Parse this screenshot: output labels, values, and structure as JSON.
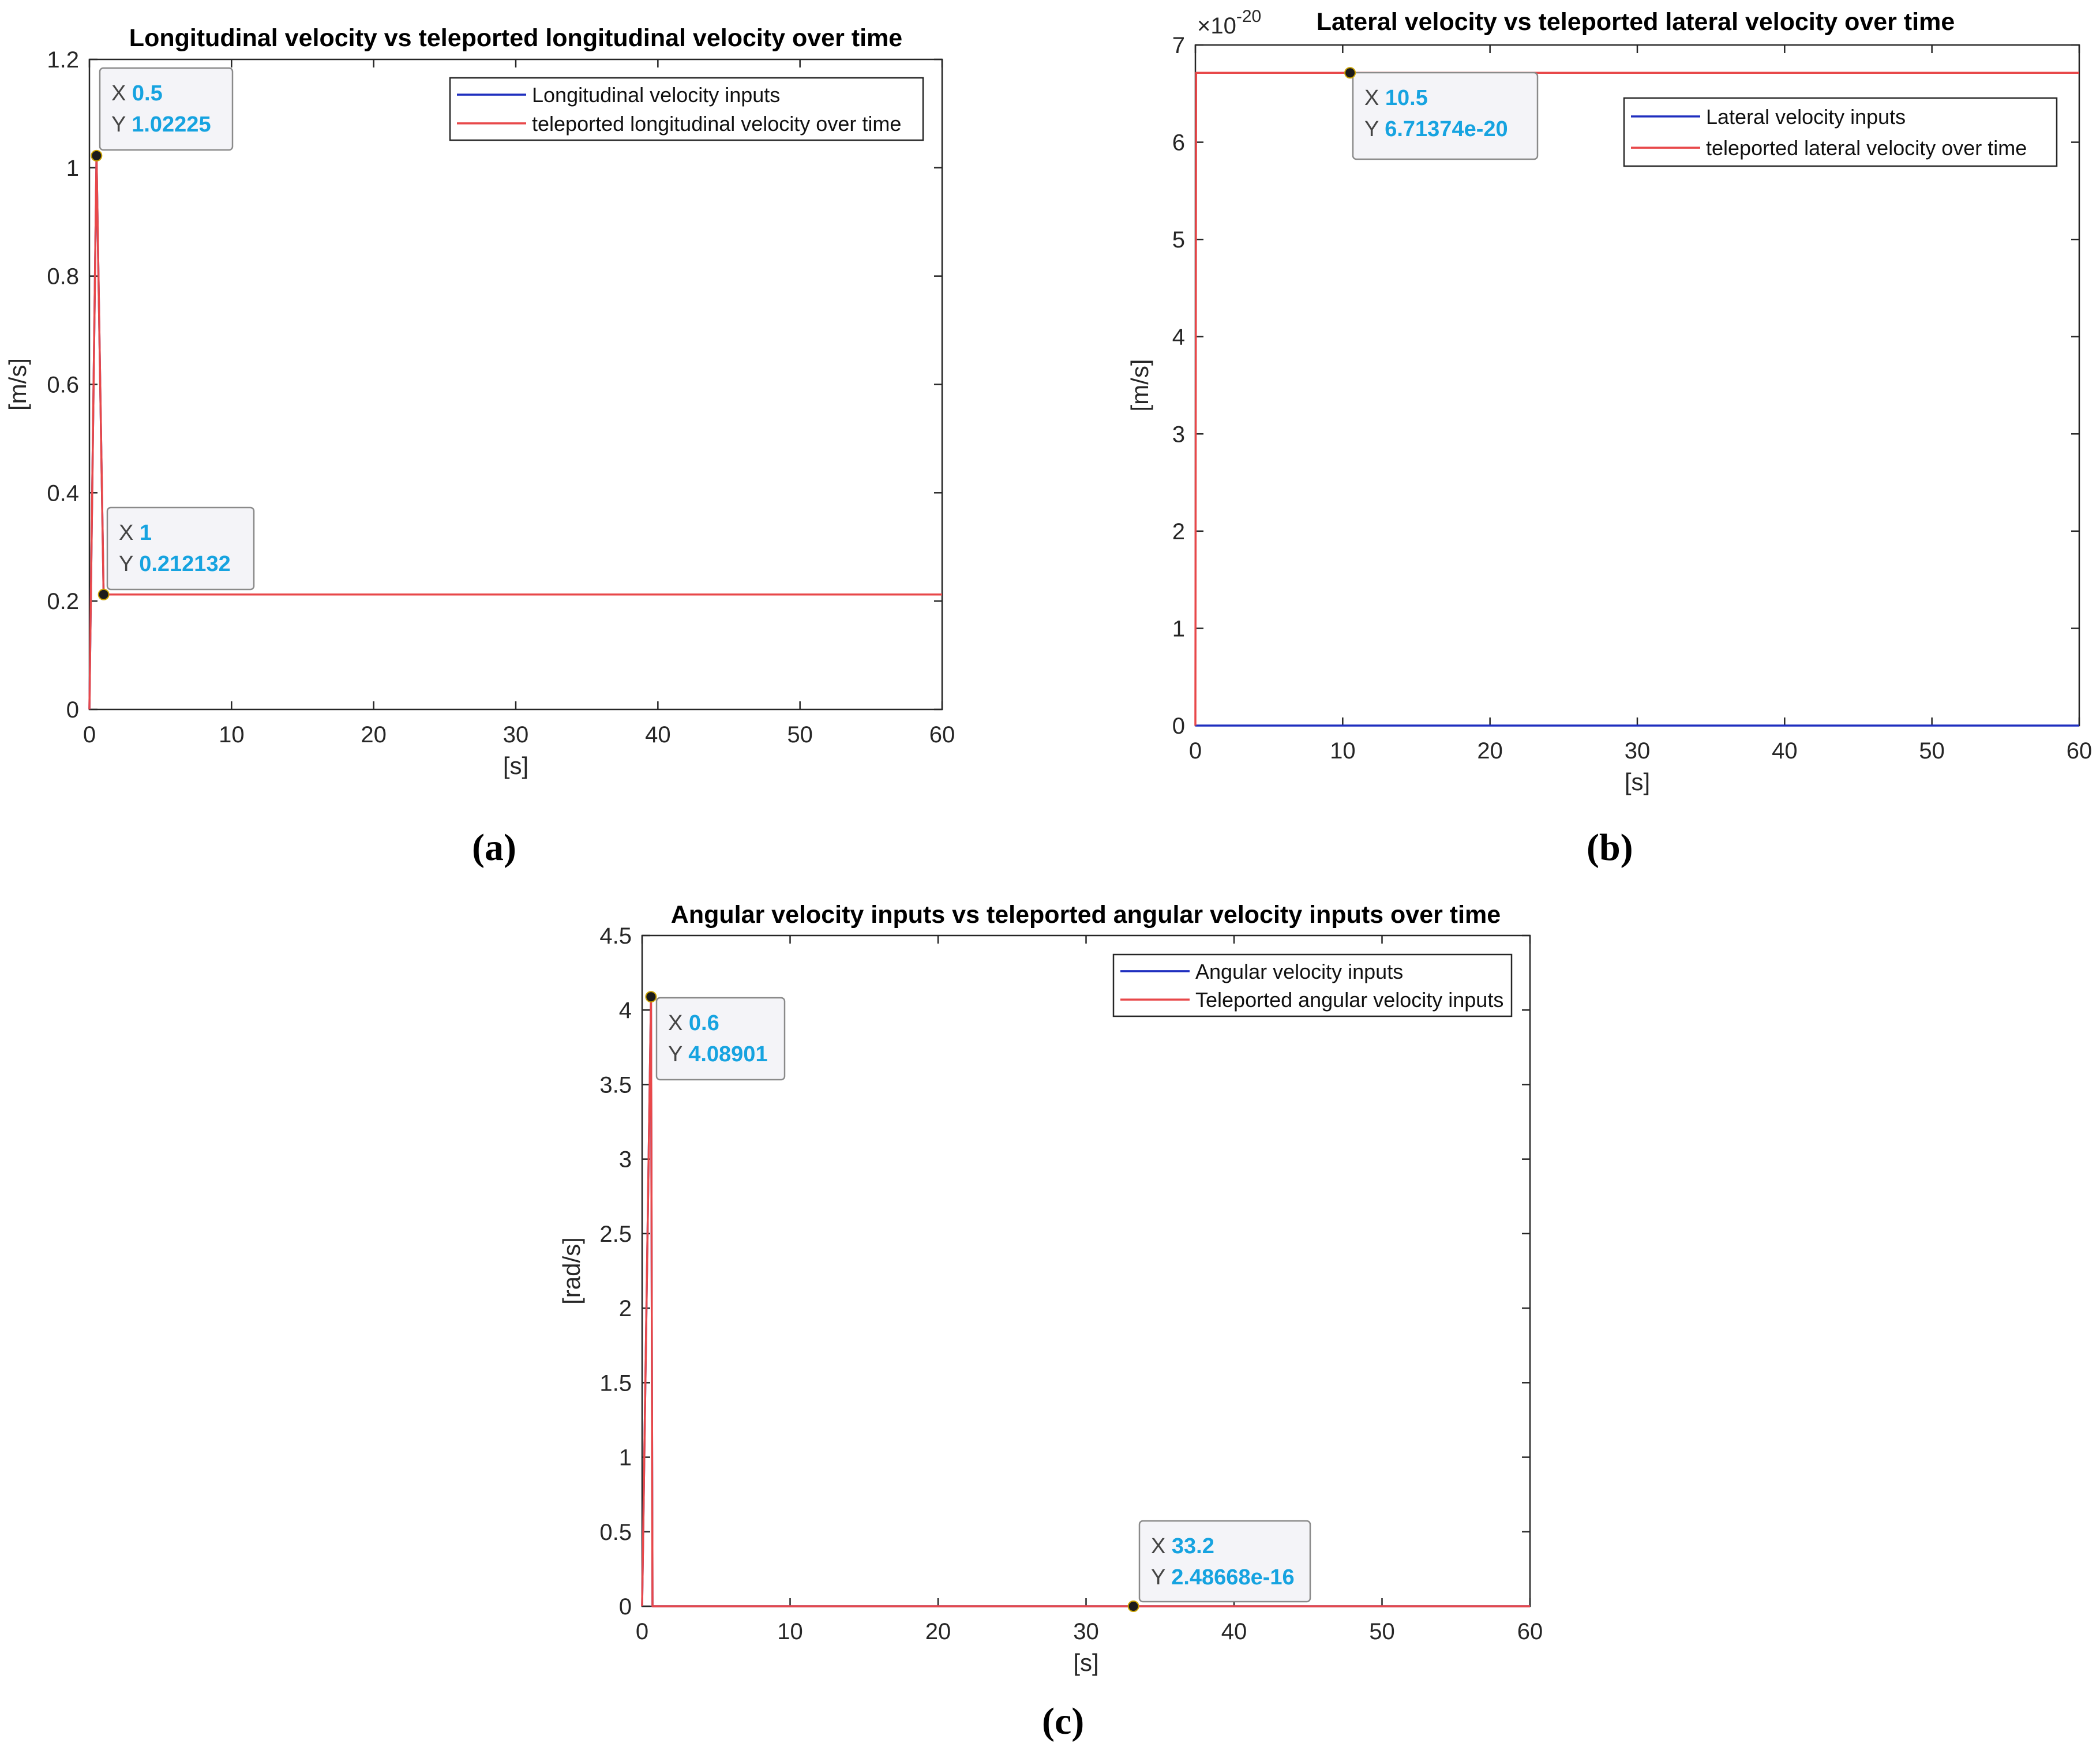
{
  "figure": {
    "panel_labels": [
      "(a)",
      "(b)",
      "(c)"
    ]
  },
  "colors": {
    "inputs": "#1f2fbf",
    "teleported": "#e8484a",
    "tip_value": "#16a3e0",
    "tip_label": "#444444",
    "axis": "#262626"
  },
  "chart_data": [
    {
      "id": "a",
      "type": "line",
      "title": "Longitudinal velocity vs teleported longitudinal velocity over time",
      "xlabel": "[s]",
      "ylabel": "[m/s]",
      "xlim": [
        0,
        60
      ],
      "ylim": [
        0,
        1.2
      ],
      "xticks": [
        0,
        10,
        20,
        30,
        40,
        50,
        60
      ],
      "yticks": [
        0,
        0.2,
        0.4,
        0.6,
        0.8,
        1,
        1.2
      ],
      "ytick_labels": [
        "0",
        "0.2",
        "0.4",
        "0.6",
        "0.8",
        "1",
        "1.2"
      ],
      "exponent": "",
      "grid": false,
      "legend_position": "top-right",
      "series": [
        {
          "name": "Longitudinal velocity inputs",
          "color": "inputs",
          "x": [
            0,
            0.5,
            1,
            60
          ],
          "y": [
            0,
            1.02225,
            0.212132,
            0.212132
          ]
        },
        {
          "name": "teleported longitudinal velocity over time",
          "color": "teleported",
          "x": [
            0,
            0.5,
            1,
            60
          ],
          "y": [
            0,
            1.02225,
            0.212132,
            0.212132
          ]
        }
      ],
      "datatips": [
        {
          "x": 0.5,
          "y": 1.02225,
          "x_text": "0.5",
          "y_text": "1.02225"
        },
        {
          "x": 1,
          "y": 0.212132,
          "x_text": "1",
          "y_text": "0.212132"
        }
      ]
    },
    {
      "id": "b",
      "type": "line",
      "title": "Lateral velocity vs teleported lateral velocity over time",
      "xlabel": "[s]",
      "ylabel": "[m/s]",
      "xlim": [
        0,
        60
      ],
      "ylim": [
        0,
        7
      ],
      "xticks": [
        0,
        10,
        20,
        30,
        40,
        50,
        60
      ],
      "yticks": [
        0,
        1,
        2,
        3,
        4,
        5,
        6,
        7
      ],
      "ytick_labels": [
        "0",
        "1",
        "2",
        "3",
        "4",
        "5",
        "6",
        "7"
      ],
      "exponent": "-20",
      "exponent_base": "×10",
      "grid": false,
      "legend_position": "top-right",
      "series": [
        {
          "name": "Lateral velocity inputs",
          "color": "inputs",
          "x": [
            0,
            60
          ],
          "y": [
            0,
            0
          ]
        },
        {
          "name": "teleported lateral velocity over time",
          "color": "teleported",
          "x": [
            0,
            0.05,
            60
          ],
          "y": [
            0,
            6.71374,
            6.71374
          ]
        }
      ],
      "datatips": [
        {
          "x": 10.5,
          "y": 6.71374,
          "x_text": "10.5",
          "y_text": "6.71374e-20"
        }
      ]
    },
    {
      "id": "c",
      "type": "line",
      "title": "Angular velocity inputs vs teleported angular velocity inputs over time",
      "xlabel": "[s]",
      "ylabel": "[rad/s]",
      "xlim": [
        0,
        60
      ],
      "ylim": [
        0,
        4.5
      ],
      "xticks": [
        0,
        10,
        20,
        30,
        40,
        50,
        60
      ],
      "yticks": [
        0,
        0.5,
        1,
        1.5,
        2,
        2.5,
        3,
        3.5,
        4,
        4.5
      ],
      "ytick_labels": [
        "0",
        "0.5",
        "1",
        "1.5",
        "2",
        "2.5",
        "3",
        "3.5",
        "4",
        "4.5"
      ],
      "exponent": "",
      "grid": false,
      "legend_position": "top-right",
      "series": [
        {
          "name": "Angular velocity inputs",
          "color": "inputs",
          "x": [
            0,
            0.6,
            0.7,
            60
          ],
          "y": [
            0,
            4.08901,
            0,
            0
          ]
        },
        {
          "name": "Teleported angular velocity inputs",
          "color": "teleported",
          "x": [
            0,
            0.6,
            0.7,
            60
          ],
          "y": [
            0,
            4.08901,
            0,
            0
          ]
        }
      ],
      "datatips": [
        {
          "x": 0.6,
          "y": 4.08901,
          "x_text": "0.6",
          "y_text": "4.08901"
        },
        {
          "x": 33.2,
          "y": 0,
          "x_text": "33.2",
          "y_text": "2.48668e-16"
        }
      ]
    }
  ]
}
